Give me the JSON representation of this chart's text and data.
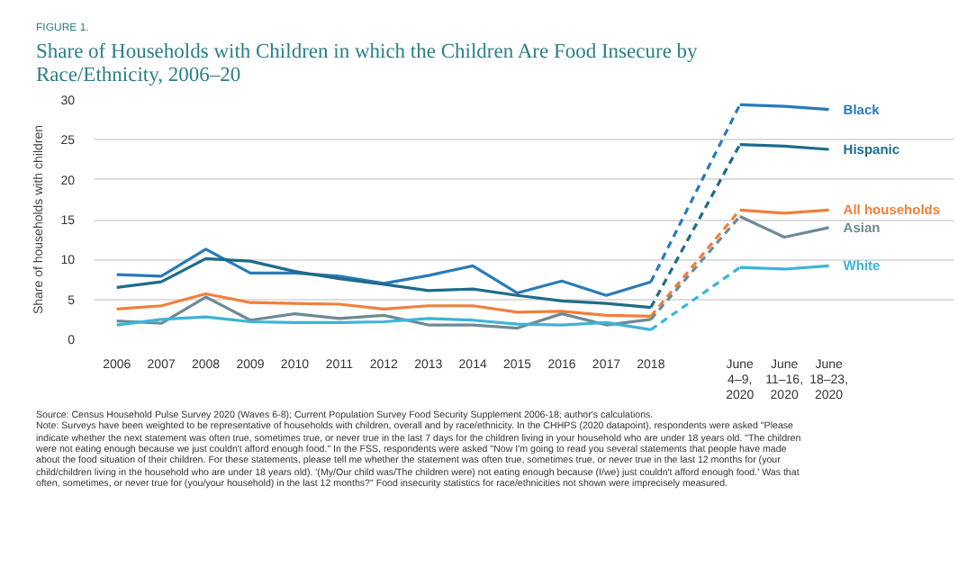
{
  "chart_data": {
    "type": "line",
    "subtitle": "FIGURE 1.",
    "title": "Share of Households with Children in which the Children Are Food Insecure by Race/Ethnicity, 2006–20",
    "ylabel": "Share of households with children",
    "categories": [
      "2006",
      "2007",
      "2008",
      "2009",
      "2010",
      "2011",
      "2012",
      "2013",
      "2014",
      "2015",
      "2016",
      "2017",
      "2018",
      "June\n4–9,\n2020",
      "June\n11–16,\n2020",
      "June\n18–23,\n2020"
    ],
    "series": [
      {
        "name": "Black",
        "color": "#2a7ab9",
        "values": [
          8.1,
          7.9,
          11.3,
          8.3,
          8.3,
          7.9,
          7.0,
          8.0,
          9.2,
          5.8,
          7.3,
          5.5,
          7.2,
          29.4,
          29.2,
          28.8
        ]
      },
      {
        "name": "Hispanic",
        "color": "#1f6b8a",
        "values": [
          6.5,
          7.2,
          10.1,
          9.8,
          8.5,
          7.6,
          6.9,
          6.1,
          6.3,
          5.5,
          4.8,
          4.5,
          4.0,
          24.4,
          24.2,
          23.8
        ]
      },
      {
        "name": "All households",
        "color": "#f07f3c",
        "values": [
          3.8,
          4.2,
          5.7,
          4.6,
          4.5,
          4.4,
          3.8,
          4.2,
          4.2,
          3.4,
          3.5,
          3.0,
          2.9,
          16.2,
          15.8,
          16.2
        ]
      },
      {
        "name": "Asian",
        "color": "#6d8a96",
        "values": [
          2.3,
          2.0,
          5.3,
          2.4,
          3.2,
          2.6,
          3.0,
          1.8,
          1.8,
          1.4,
          3.2,
          1.8,
          2.5,
          15.4,
          12.8,
          14.0
        ]
      },
      {
        "name": "White",
        "color": "#3bb4d8",
        "values": [
          1.8,
          2.5,
          2.8,
          2.2,
          2.1,
          2.1,
          2.2,
          2.6,
          2.4,
          1.9,
          1.8,
          2.1,
          1.2,
          9.0,
          8.8,
          9.2
        ]
      }
    ],
    "ylim": [
      0,
      30
    ],
    "yticks": [
      0,
      5,
      10,
      15,
      20,
      25,
      30
    ],
    "grid": "y",
    "legend": false,
    "marker": "none",
    "line_style": "solid",
    "annotations": [
      "Source: Census Household Pulse Survey 2020 (Waves 6-8); Current Population Survey Food Security Supplement 2006-18; author's calculations.",
      "Note: Surveys have been weighted to be representative of households with children, overall and by race/ethnicity. In the CHHPS (2020 datapoint), respondents were asked \"Please indicate whether the next statement was often true, sometimes true, or never true in the last 7 days for the children living in your household who are under 18 years old. \"The children were not eating enough because we just couldn't afford enough food.\" In the FSS, respondents were asked \"Now I'm going to read you several statements that people have made about the food situation of their children. For these statements, please tell me whether the statement was often true, sometimes true, or never true in the last 12 months for (your child/children living in the household who are under 18 years old). '(My/Our child was/The children were) not eating enough because (I/we) just couldn't afford enough food.' Was that often, sometimes, or never true for (you/your household) in the last 12 months?\" Food insecurity statistics for race/ethnicities not shown were imprecisely measured."
    ]
  }
}
